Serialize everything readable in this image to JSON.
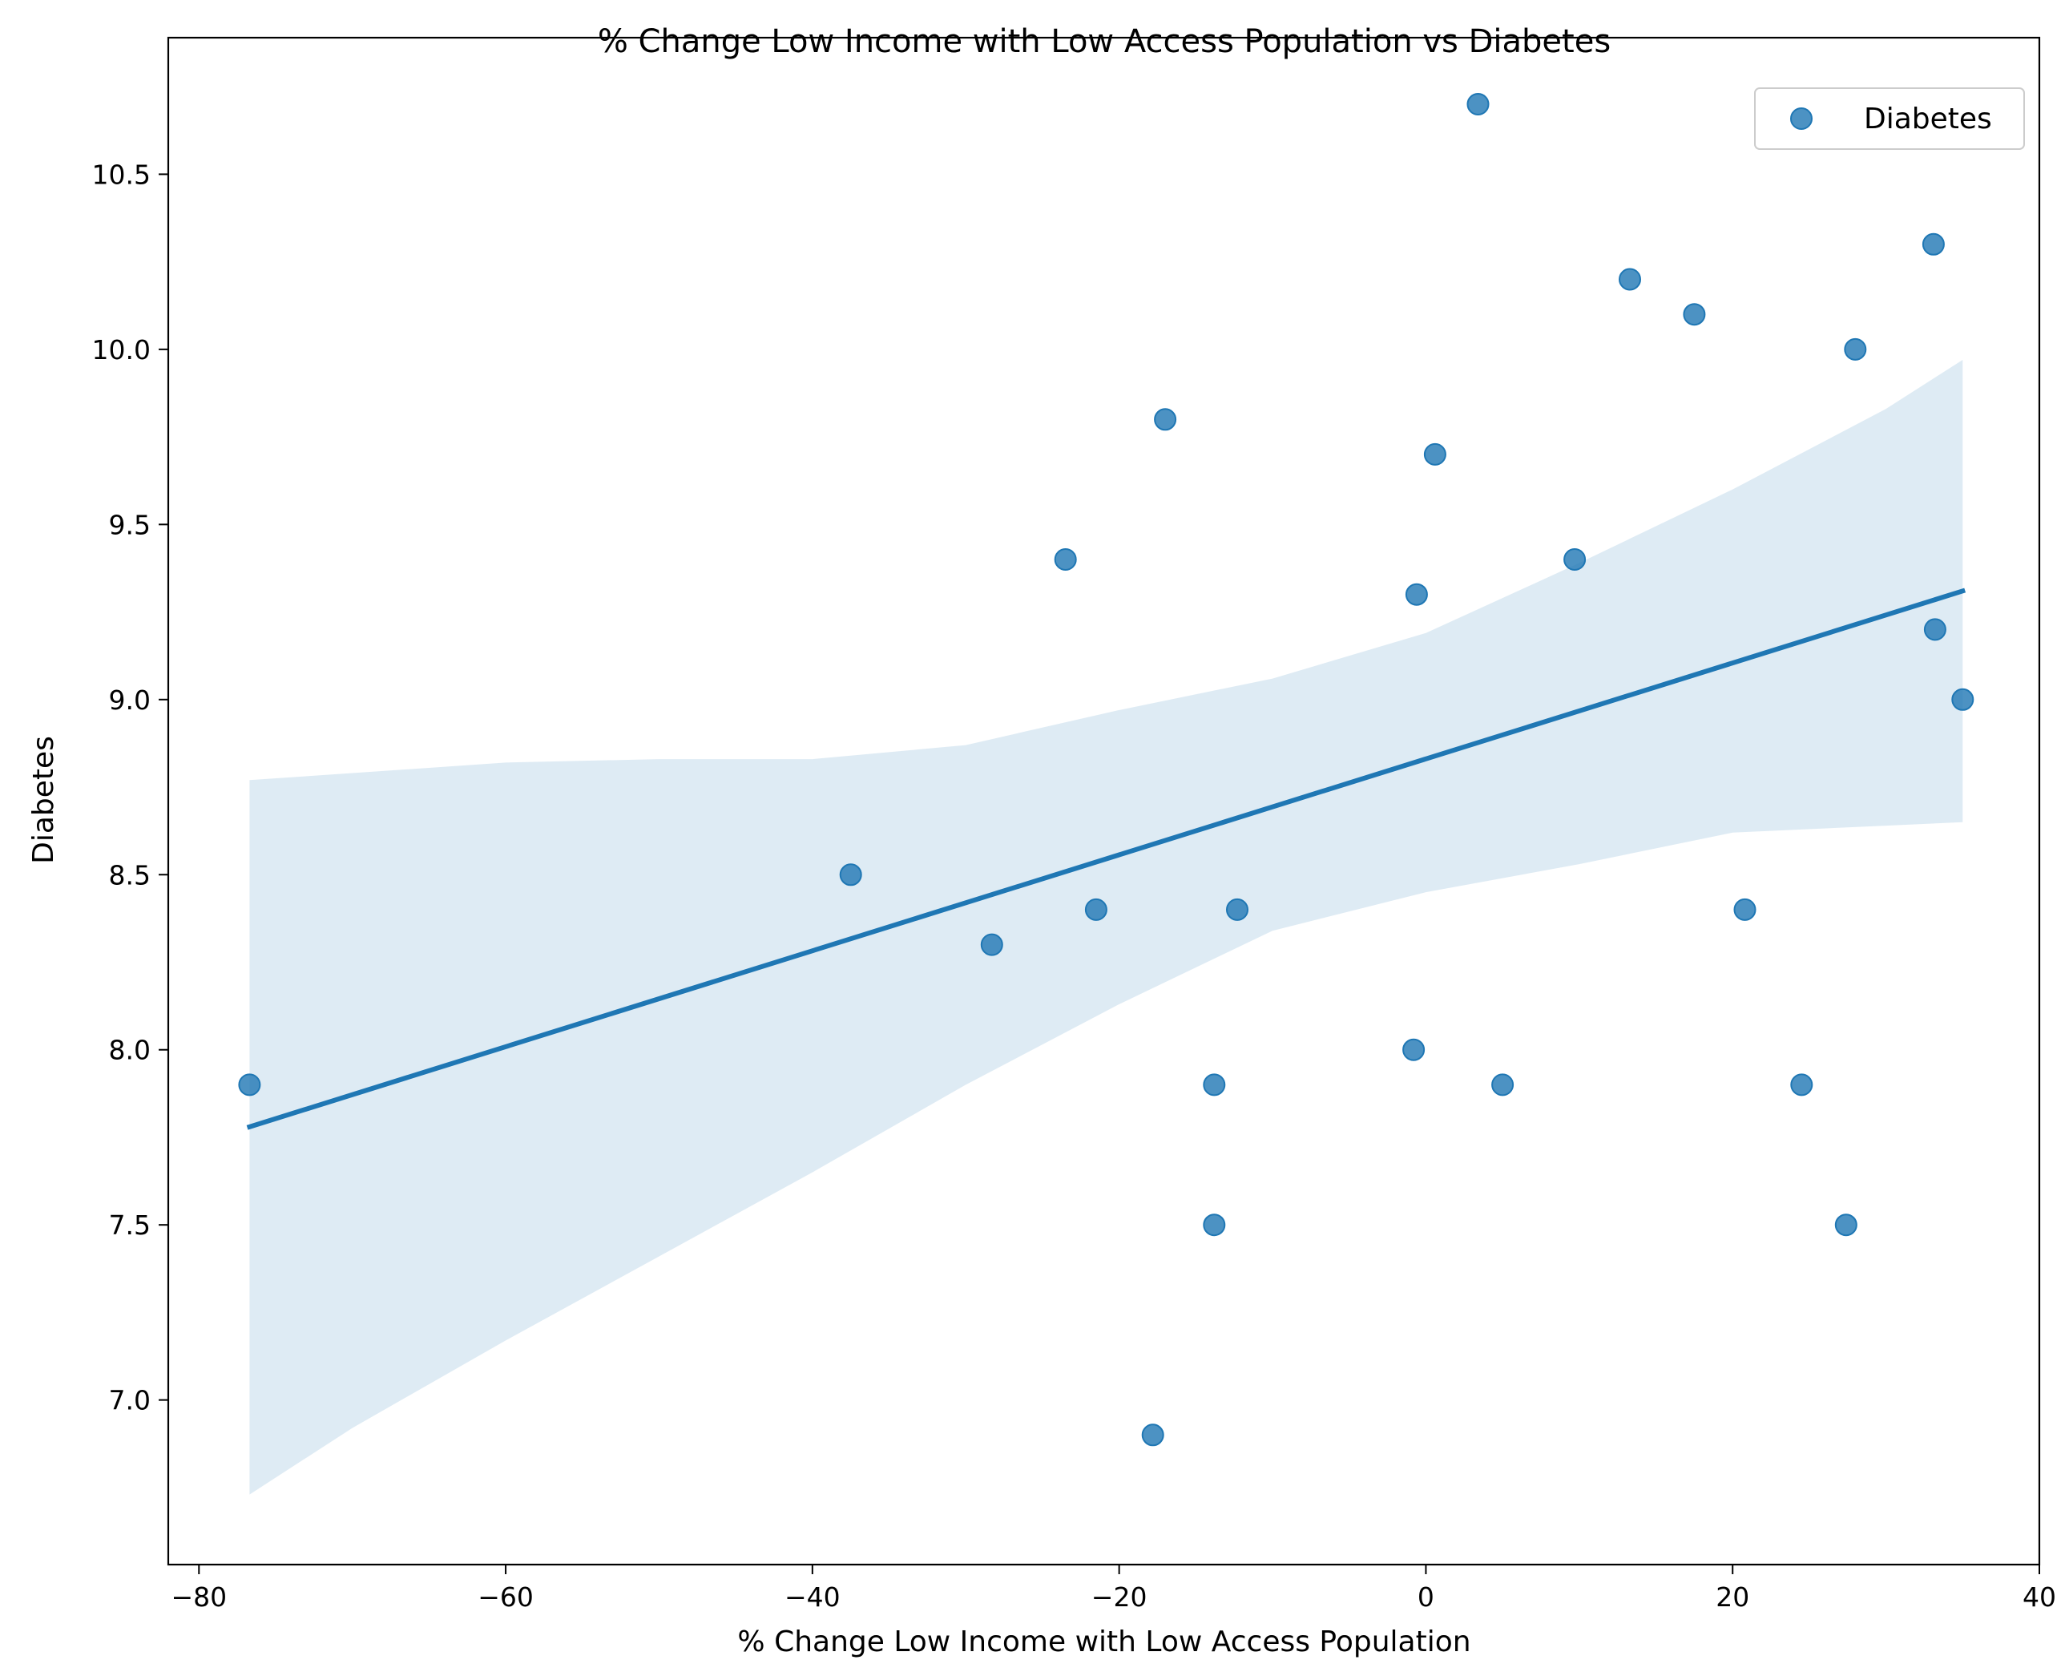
{
  "chart_data": {
    "type": "scatter",
    "title": "% Change Low Income with Low  Access Population vs Diabetes",
    "xlabel": "% Change Low Income with Low  Access Population",
    "ylabel": "Diabetes",
    "xlim": [
      -82,
      40
    ],
    "ylim": [
      6.53,
      10.89
    ],
    "xticks": [
      -80,
      -60,
      -40,
      -20,
      0,
      20,
      40
    ],
    "xtick_labels": [
      "−80",
      "−60",
      "−40",
      "−20",
      "0",
      "20",
      "40"
    ],
    "yticks": [
      7.0,
      7.5,
      8.0,
      8.5,
      9.0,
      9.5,
      10.0,
      10.5
    ],
    "ytick_labels": [
      "7.0",
      "7.5",
      "8.0",
      "8.5",
      "9.0",
      "9.5",
      "10.0",
      "10.5"
    ],
    "grid": false,
    "legend": {
      "position": "top-right",
      "entries": [
        "Diabetes"
      ]
    },
    "series": [
      {
        "name": "Diabetes",
        "color": "#1f77b4",
        "points": [
          [
            -76.7,
            7.9
          ],
          [
            -37.5,
            8.5
          ],
          [
            -28.3,
            8.3
          ],
          [
            -23.5,
            9.4
          ],
          [
            -21.5,
            8.4
          ],
          [
            -17.0,
            9.8
          ],
          [
            -17.8,
            6.9
          ],
          [
            -13.8,
            7.9
          ],
          [
            -13.8,
            7.5
          ],
          [
            -12.3,
            8.4
          ],
          [
            -0.8,
            8.0
          ],
          [
            -0.6,
            9.3
          ],
          [
            0.6,
            9.7
          ],
          [
            3.4,
            10.7
          ],
          [
            5.0,
            7.9
          ],
          [
            9.7,
            9.4
          ],
          [
            13.3,
            10.2
          ],
          [
            17.5,
            10.1
          ],
          [
            20.8,
            8.4
          ],
          [
            24.5,
            7.9
          ],
          [
            27.4,
            7.5
          ],
          [
            28.0,
            10.0
          ],
          [
            33.1,
            10.3
          ],
          [
            33.2,
            9.2
          ],
          [
            35.0,
            9.0
          ]
        ]
      }
    ],
    "regression": {
      "color": "#1f77b4",
      "x": [
        -76.7,
        35.0
      ],
      "y": [
        7.78,
        9.31
      ]
    },
    "confidence_band": {
      "color": "#1f77b4",
      "opacity": 0.15,
      "x": [
        -76.7,
        -70,
        -60,
        -50,
        -40,
        -30,
        -20,
        -10,
        0,
        10,
        20,
        30,
        35.0
      ],
      "upper": [
        8.77,
        8.79,
        8.82,
        8.83,
        8.83,
        8.87,
        8.97,
        9.06,
        9.19,
        9.39,
        9.6,
        9.83,
        9.97
      ],
      "lower": [
        6.73,
        6.92,
        7.17,
        7.41,
        7.65,
        7.9,
        8.13,
        8.34,
        8.45,
        8.53,
        8.62,
        8.64,
        8.65
      ]
    }
  }
}
